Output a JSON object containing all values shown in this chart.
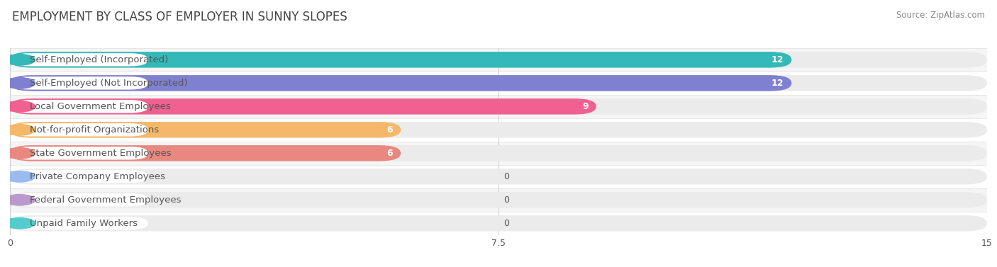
{
  "title": "EMPLOYMENT BY CLASS OF EMPLOYER IN SUNNY SLOPES",
  "source": "Source: ZipAtlas.com",
  "categories": [
    "Self-Employed (Incorporated)",
    "Self-Employed (Not Incorporated)",
    "Local Government Employees",
    "Not-for-profit Organizations",
    "State Government Employees",
    "Private Company Employees",
    "Federal Government Employees",
    "Unpaid Family Workers"
  ],
  "values": [
    12,
    12,
    9,
    6,
    6,
    0,
    0,
    0
  ],
  "bar_colors": [
    "#35b8b8",
    "#8080d0",
    "#f06090",
    "#f5b86a",
    "#e88880",
    "#99bbee",
    "#bb99cc",
    "#55cccc"
  ],
  "dot_colors": [
    "#35b8b8",
    "#8080d0",
    "#f06090",
    "#f5b86a",
    "#e88880",
    "#99bbee",
    "#bb99cc",
    "#55cccc"
  ],
  "track_color": "#ebebeb",
  "row_bg_colors": [
    "#f5f5f5",
    "#ffffff"
  ],
  "row_line_color": "#e0e0e0",
  "xlim": [
    0,
    15
  ],
  "xticks": [
    0,
    7.5,
    15
  ],
  "title_fontsize": 12,
  "label_fontsize": 9.5,
  "value_fontsize": 9,
  "source_fontsize": 8.5,
  "background_color": "#ffffff",
  "grid_color": "#cccccc",
  "label_bg_color": "#ffffff",
  "text_color": "#555555",
  "title_color": "#444444"
}
